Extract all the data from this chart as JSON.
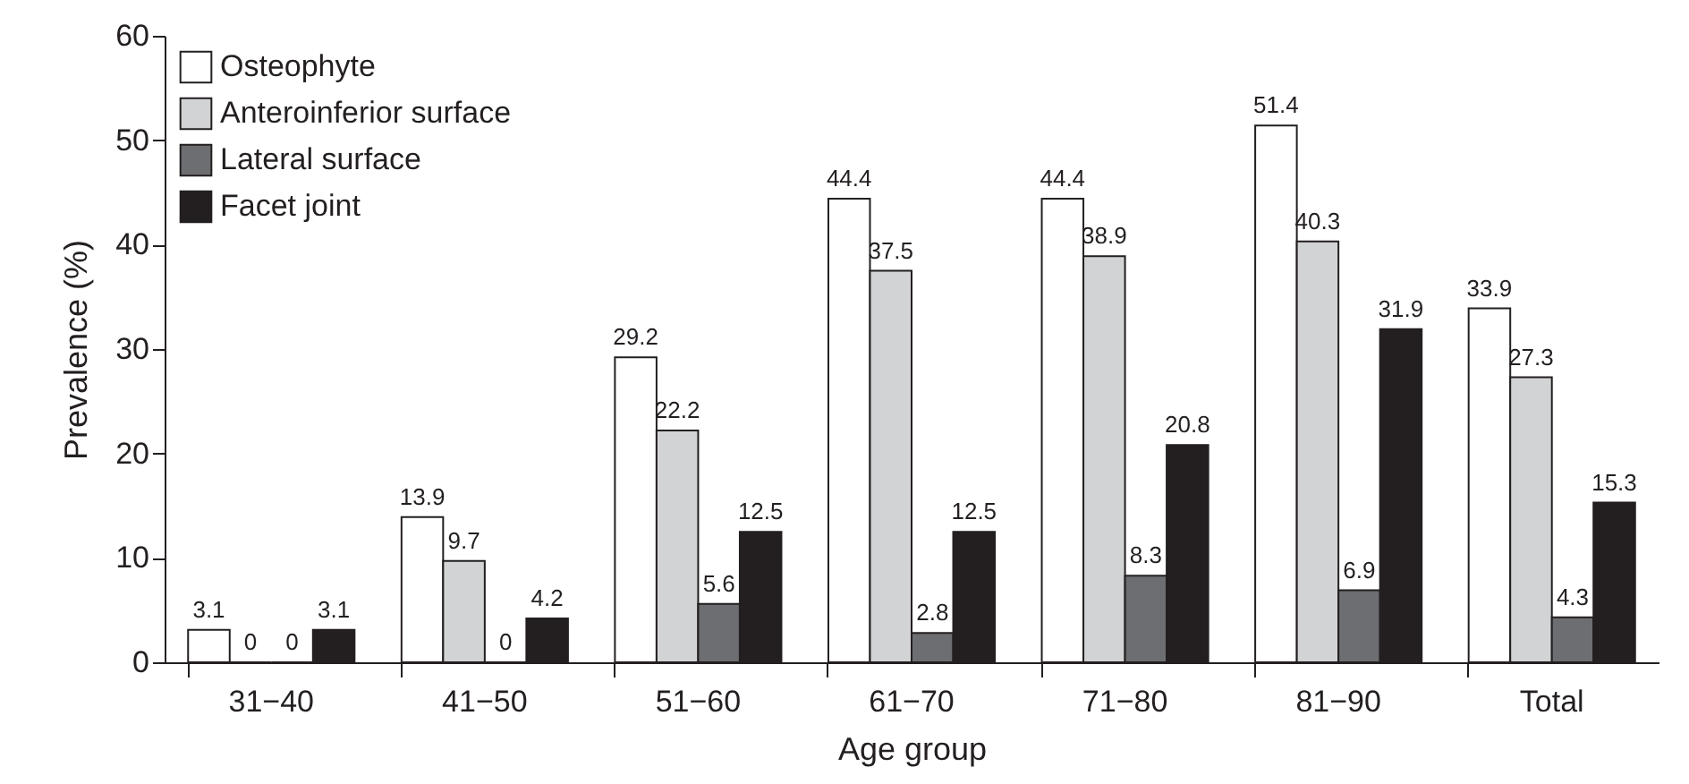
{
  "chart_data": {
    "type": "bar",
    "xlabel": "Age group",
    "ylabel": "Prevalence (%)",
    "categories": [
      "31−40",
      "41−50",
      "51−60",
      "61−70",
      "71−80",
      "81−90",
      "Total"
    ],
    "series": [
      {
        "name": "Osteophyte",
        "color": "#ffffff",
        "values": [
          3.1,
          13.9,
          29.2,
          44.4,
          44.4,
          51.4,
          33.9
        ]
      },
      {
        "name": "Anteroinferior surface",
        "color": "#d1d3d4",
        "values": [
          0,
          9.7,
          22.2,
          37.5,
          38.9,
          40.3,
          27.3
        ]
      },
      {
        "name": "Lateral surface",
        "color": "#6d6e71",
        "values": [
          0,
          0,
          5.6,
          2.8,
          8.3,
          6.9,
          4.3
        ]
      },
      {
        "name": "Facet joint",
        "color": "#231f20",
        "values": [
          3.1,
          4.2,
          12.5,
          12.5,
          20.8,
          31.9,
          15.3
        ]
      }
    ],
    "ylim": [
      0,
      60
    ],
    "yticks": [
      0,
      10,
      20,
      30,
      40,
      50,
      60
    ],
    "data_labels": true,
    "legend": "top left",
    "grid": false
  }
}
